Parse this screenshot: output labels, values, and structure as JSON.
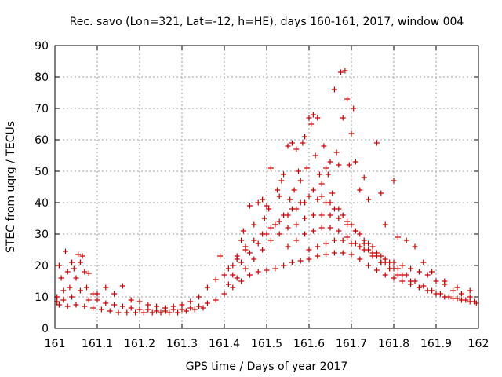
{
  "chart_data": {
    "type": "scatter",
    "title": "Rec. savo (Lon=321, Lat=-12, h=HE), days 160-161, 2017, window 004",
    "xlabel": "GPS time / Days of year 2017",
    "ylabel": "STEC from uqrg / TECUs",
    "xlim": [
      161,
      162
    ],
    "ylim": [
      0,
      90
    ],
    "x_ticks": [
      "161",
      "161.1",
      "161.2",
      "161.3",
      "161.4",
      "161.5",
      "161.6",
      "161.7",
      "161.8",
      "161.9",
      "162"
    ],
    "y_ticks": [
      "0",
      "10",
      "20",
      "30",
      "40",
      "50",
      "60",
      "70",
      "80",
      "90"
    ],
    "grid": true,
    "marker": "+",
    "color": "#cc0000",
    "series": [
      {
        "points": [
          [
            161.005,
            8.5
          ],
          [
            161.01,
            20
          ],
          [
            161.015,
            16
          ],
          [
            161.02,
            12
          ],
          [
            161.025,
            24.5
          ],
          [
            161.03,
            18
          ],
          [
            161.035,
            13
          ],
          [
            161.04,
            21
          ],
          [
            161.045,
            19
          ],
          [
            161.05,
            16
          ],
          [
            161.055,
            23.5
          ],
          [
            161.06,
            21
          ],
          [
            161.065,
            23
          ],
          [
            161.07,
            18
          ],
          [
            161.075,
            13
          ],
          [
            161.08,
            17.5
          ],
          [
            161.09,
            11
          ],
          [
            161.1,
            11
          ],
          [
            161.12,
            13
          ],
          [
            161.14,
            11
          ],
          [
            161.16,
            13.5
          ],
          [
            161.18,
            9
          ],
          [
            161.2,
            8.5
          ],
          [
            161.22,
            7.5
          ],
          [
            161.24,
            7
          ],
          [
            161.26,
            6.5
          ],
          [
            161.28,
            7
          ],
          [
            161.3,
            7.5
          ],
          [
            161.32,
            8.5
          ],
          [
            161.34,
            10
          ],
          [
            161.36,
            13
          ],
          [
            161.38,
            15.5
          ],
          [
            161.39,
            23
          ],
          [
            161.4,
            17
          ],
          [
            161.41,
            19
          ],
          [
            161.42,
            20
          ],
          [
            161.43,
            23
          ],
          [
            161.44,
            28
          ],
          [
            161.445,
            31
          ],
          [
            161.45,
            26
          ],
          [
            161.46,
            39
          ],
          [
            161.47,
            33
          ],
          [
            161.48,
            40
          ],
          [
            161.49,
            41
          ],
          [
            161.495,
            35
          ],
          [
            161.5,
            39
          ],
          [
            161.505,
            38
          ],
          [
            161.51,
            51
          ],
          [
            161.52,
            33
          ],
          [
            161.525,
            44
          ],
          [
            161.53,
            42
          ],
          [
            161.535,
            47
          ],
          [
            161.54,
            49
          ],
          [
            161.55,
            58
          ],
          [
            161.555,
            41
          ],
          [
            161.56,
            59
          ],
          [
            161.565,
            44
          ],
          [
            161.57,
            57
          ],
          [
            161.575,
            50
          ],
          [
            161.58,
            47
          ],
          [
            161.585,
            59
          ],
          [
            161.59,
            61
          ],
          [
            161.595,
            51
          ],
          [
            161.6,
            67
          ],
          [
            161.605,
            65
          ],
          [
            161.61,
            68
          ],
          [
            161.615,
            55
          ],
          [
            161.62,
            67
          ],
          [
            161.625,
            49
          ],
          [
            161.63,
            46
          ],
          [
            161.635,
            58
          ],
          [
            161.64,
            51
          ],
          [
            161.645,
            49
          ],
          [
            161.65,
            53
          ],
          [
            161.655,
            43
          ],
          [
            161.66,
            76
          ],
          [
            161.665,
            56
          ],
          [
            161.67,
            52
          ],
          [
            161.675,
            81.5
          ],
          [
            161.68,
            67
          ],
          [
            161.685,
            82
          ],
          [
            161.69,
            73
          ],
          [
            161.695,
            52
          ],
          [
            161.7,
            62
          ],
          [
            161.705,
            70
          ],
          [
            161.71,
            53
          ],
          [
            161.72,
            44
          ],
          [
            161.73,
            48
          ],
          [
            161.74,
            41
          ],
          [
            161.76,
            59
          ],
          [
            161.77,
            43
          ],
          [
            161.78,
            33
          ],
          [
            161.8,
            47
          ],
          [
            161.81,
            29
          ],
          [
            161.83,
            28
          ],
          [
            161.85,
            26
          ],
          [
            161.87,
            21
          ],
          [
            161.89,
            18
          ],
          [
            161.92,
            15
          ],
          [
            161.95,
            13
          ],
          [
            161.98,
            12
          ],
          [
            161.005,
            10
          ],
          [
            161.02,
            9
          ],
          [
            161.04,
            10
          ],
          [
            161.06,
            12
          ],
          [
            161.08,
            9
          ],
          [
            161.1,
            9
          ],
          [
            161.12,
            8
          ],
          [
            161.14,
            7.5
          ],
          [
            161.16,
            7
          ],
          [
            161.18,
            6.5
          ],
          [
            161.2,
            6
          ],
          [
            161.22,
            6
          ],
          [
            161.24,
            5.5
          ],
          [
            161.26,
            5.5
          ],
          [
            161.28,
            6
          ],
          [
            161.3,
            6
          ],
          [
            161.32,
            6.5
          ],
          [
            161.34,
            7
          ],
          [
            161.36,
            8
          ],
          [
            161.38,
            9
          ],
          [
            161.4,
            11
          ],
          [
            161.42,
            13
          ],
          [
            161.44,
            15
          ],
          [
            161.46,
            17
          ],
          [
            161.48,
            18
          ],
          [
            161.5,
            18.5
          ],
          [
            161.52,
            19
          ],
          [
            161.54,
            20
          ],
          [
            161.56,
            21
          ],
          [
            161.58,
            21.5
          ],
          [
            161.6,
            22
          ],
          [
            161.62,
            23
          ],
          [
            161.64,
            23.5
          ],
          [
            161.66,
            24
          ],
          [
            161.68,
            24
          ],
          [
            161.7,
            23.5
          ],
          [
            161.72,
            22
          ],
          [
            161.74,
            20
          ],
          [
            161.76,
            18.5
          ],
          [
            161.78,
            17
          ],
          [
            161.8,
            16
          ],
          [
            161.82,
            15
          ],
          [
            161.84,
            14
          ],
          [
            161.86,
            13
          ],
          [
            161.88,
            12
          ],
          [
            161.9,
            11
          ],
          [
            161.92,
            10
          ],
          [
            161.94,
            9.5
          ],
          [
            161.96,
            9
          ],
          [
            161.98,
            8.5
          ],
          [
            161.995,
            8
          ],
          [
            161.01,
            7.5
          ],
          [
            161.03,
            7
          ],
          [
            161.05,
            7.5
          ],
          [
            161.07,
            7
          ],
          [
            161.09,
            6.5
          ],
          [
            161.11,
            6
          ],
          [
            161.13,
            5.5
          ],
          [
            161.15,
            5
          ],
          [
            161.17,
            5
          ],
          [
            161.19,
            5
          ],
          [
            161.21,
            5
          ],
          [
            161.23,
            5
          ],
          [
            161.25,
            5
          ],
          [
            161.27,
            5
          ],
          [
            161.29,
            5
          ],
          [
            161.31,
            5.5
          ],
          [
            161.33,
            6
          ],
          [
            161.35,
            6.5
          ],
          [
            161.41,
            14
          ],
          [
            161.43,
            16
          ],
          [
            161.45,
            19
          ],
          [
            161.47,
            22
          ],
          [
            161.49,
            25
          ],
          [
            161.51,
            28
          ],
          [
            161.53,
            30
          ],
          [
            161.55,
            32
          ],
          [
            161.57,
            33
          ],
          [
            161.59,
            35
          ],
          [
            161.61,
            36
          ],
          [
            161.63,
            36
          ],
          [
            161.65,
            36
          ],
          [
            161.67,
            35
          ],
          [
            161.69,
            33
          ],
          [
            161.71,
            31
          ],
          [
            161.73,
            28
          ],
          [
            161.75,
            26
          ],
          [
            161.77,
            23
          ],
          [
            161.79,
            21
          ],
          [
            161.81,
            19
          ],
          [
            161.83,
            17
          ],
          [
            161.85,
            15
          ],
          [
            161.87,
            13.5
          ],
          [
            161.89,
            12
          ],
          [
            161.91,
            11
          ],
          [
            161.93,
            10
          ],
          [
            161.95,
            9.5
          ],
          [
            161.97,
            9
          ],
          [
            161.99,
            8.5
          ],
          [
            161.42,
            17
          ],
          [
            161.44,
            21
          ],
          [
            161.46,
            24
          ],
          [
            161.48,
            27
          ],
          [
            161.5,
            30
          ],
          [
            161.52,
            33
          ],
          [
            161.54,
            36
          ],
          [
            161.56,
            38
          ],
          [
            161.58,
            40
          ],
          [
            161.6,
            42
          ],
          [
            161.62,
            41
          ],
          [
            161.64,
            40
          ],
          [
            161.66,
            38
          ],
          [
            161.68,
            36
          ],
          [
            161.7,
            33
          ],
          [
            161.72,
            30
          ],
          [
            161.74,
            27
          ],
          [
            161.76,
            24
          ],
          [
            161.78,
            21
          ],
          [
            161.8,
            19
          ],
          [
            161.82,
            17
          ],
          [
            161.84,
            15
          ],
          [
            161.86,
            13
          ],
          [
            161.43,
            22
          ],
          [
            161.45,
            25
          ],
          [
            161.47,
            28
          ],
          [
            161.49,
            30
          ],
          [
            161.51,
            32
          ],
          [
            161.53,
            34
          ],
          [
            161.55,
            36
          ],
          [
            161.57,
            38
          ],
          [
            161.59,
            40
          ],
          [
            161.61,
            44
          ],
          [
            161.63,
            42
          ],
          [
            161.65,
            40
          ],
          [
            161.67,
            38
          ],
          [
            161.69,
            34
          ],
          [
            161.71,
            31
          ],
          [
            161.73,
            27
          ],
          [
            161.75,
            24
          ],
          [
            161.77,
            21
          ],
          [
            161.79,
            19
          ],
          [
            161.81,
            17
          ],
          [
            161.55,
            26
          ],
          [
            161.57,
            28
          ],
          [
            161.59,
            30
          ],
          [
            161.61,
            31
          ],
          [
            161.63,
            32
          ],
          [
            161.65,
            32
          ],
          [
            161.67,
            31
          ],
          [
            161.69,
            29
          ],
          [
            161.71,
            27
          ],
          [
            161.73,
            25
          ],
          [
            161.75,
            23
          ],
          [
            161.77,
            21
          ],
          [
            161.79,
            19
          ],
          [
            161.6,
            25
          ],
          [
            161.62,
            26
          ],
          [
            161.64,
            27
          ],
          [
            161.66,
            28
          ],
          [
            161.68,
            28
          ],
          [
            161.7,
            27
          ],
          [
            161.72,
            26
          ],
          [
            161.74,
            25
          ],
          [
            161.76,
            23
          ],
          [
            161.78,
            22
          ],
          [
            161.8,
            21
          ],
          [
            161.82,
            20
          ],
          [
            161.84,
            19
          ],
          [
            161.86,
            18
          ],
          [
            161.88,
            17
          ],
          [
            161.9,
            15
          ],
          [
            161.92,
            14
          ],
          [
            161.94,
            12
          ],
          [
            161.96,
            11
          ],
          [
            161.98,
            10
          ]
        ]
      }
    ]
  }
}
